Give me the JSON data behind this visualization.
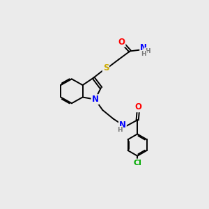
{
  "bg_color": "#ebebeb",
  "bond_color": "#000000",
  "atom_colors": {
    "O": "#ff0000",
    "N": "#0000ff",
    "S": "#ccaa00",
    "Cl": "#00aa00",
    "H": "#7a7a7a",
    "C": "#000000"
  }
}
